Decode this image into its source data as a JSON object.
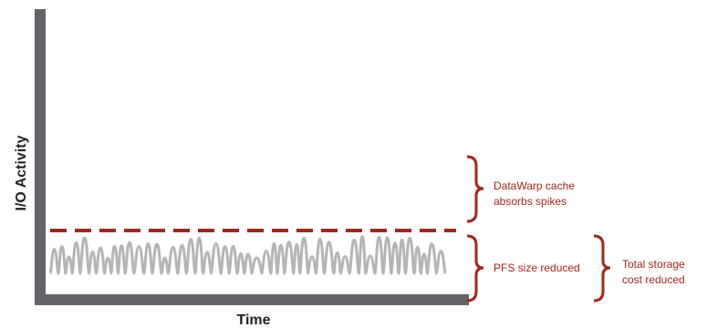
{
  "axes": {
    "y_label": "I/O Activity",
    "x_label": "Time"
  },
  "annotations": {
    "cache": [
      "DataWarp cache",
      "absorbs spikes"
    ],
    "pfs": [
      "PFS size reduced"
    ],
    "total": [
      "Total storage",
      "cost reduced"
    ]
  },
  "colors": {
    "axis": "#636569",
    "signal": "#b5b5b5",
    "accent": "#a0281c",
    "text": "#222222"
  }
}
